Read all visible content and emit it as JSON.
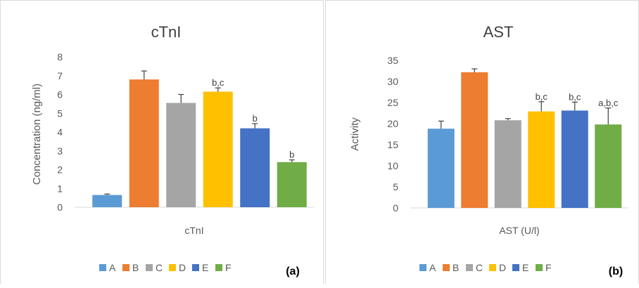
{
  "chart_data": [
    {
      "type": "bar",
      "title": "cTnI",
      "xlabel": "cTnI",
      "ylabel": "Concentration (ng/ml)",
      "ylim": [
        0,
        8
      ],
      "yticks": [
        "0",
        "1",
        "2",
        "3",
        "4",
        "5",
        "6",
        "7",
        "8"
      ],
      "series": [
        {
          "name": "A",
          "color": "#5b9bd5",
          "value": 0.65,
          "error": 0.05,
          "label": ""
        },
        {
          "name": "B",
          "color": "#ed7d31",
          "value": 6.8,
          "error": 0.45,
          "label": ""
        },
        {
          "name": "C",
          "color": "#a5a5a5",
          "value": 5.55,
          "error": 0.45,
          "label": ""
        },
        {
          "name": "D",
          "color": "#ffc000",
          "value": 6.15,
          "error": 0.2,
          "label": "b,c"
        },
        {
          "name": "E",
          "color": "#4472c4",
          "value": 4.2,
          "error": 0.25,
          "label": "b"
        },
        {
          "name": "F",
          "color": "#70ad47",
          "value": 2.4,
          "error": 0.12,
          "label": "b"
        }
      ],
      "legend_position": "bottom",
      "grid": false,
      "panel_tag": "(a)"
    },
    {
      "type": "bar",
      "title": "AST",
      "xlabel": "AST (U/l)",
      "ylabel": "Activity",
      "ylim": [
        0,
        35
      ],
      "yticks": [
        "0",
        "5",
        "10",
        "15",
        "20",
        "25",
        "30",
        "35"
      ],
      "series": [
        {
          "name": "A",
          "color": "#5b9bd5",
          "value": 18.8,
          "error": 1.8,
          "label": ""
        },
        {
          "name": "B",
          "color": "#ed7d31",
          "value": 32.2,
          "error": 0.8,
          "label": ""
        },
        {
          "name": "C",
          "color": "#a5a5a5",
          "value": 20.8,
          "error": 0.4,
          "label": ""
        },
        {
          "name": "D",
          "color": "#ffc000",
          "value": 22.9,
          "error": 2.3,
          "label": "b,c"
        },
        {
          "name": "E",
          "color": "#4472c4",
          "value": 23.1,
          "error": 2.0,
          "label": "b,c"
        },
        {
          "name": "F",
          "color": "#70ad47",
          "value": 19.8,
          "error": 3.9,
          "label": "a,b,c"
        }
      ],
      "legend_position": "bottom",
      "grid": false,
      "panel_tag": "(b)"
    }
  ]
}
